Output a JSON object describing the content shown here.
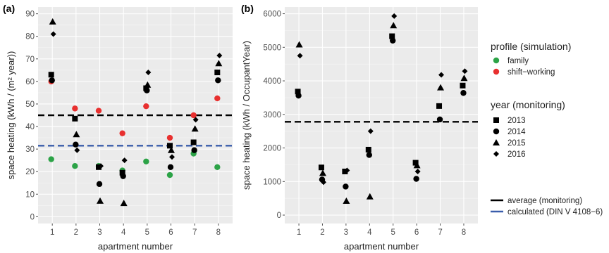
{
  "chart_data": [
    {
      "panel_label": "(a)",
      "type": "scatter",
      "xlabel": "apartment number",
      "ylabel": "space heating (kWh / (m² year))",
      "x_ticks": [
        "1",
        "2",
        "3",
        "4",
        "5",
        "6",
        "7",
        "8"
      ],
      "y_ticks": [
        "0",
        "10",
        "20",
        "30",
        "40",
        "50",
        "60",
        "70",
        "80",
        "90"
      ],
      "ylim": [
        -3,
        93
      ],
      "grid": true,
      "monitoring": [
        {
          "year": "2013",
          "values": [
            63,
            43.5,
            22,
            19.5,
            57,
            31.5,
            33,
            64
          ]
        },
        {
          "year": "2014",
          "values": [
            60.5,
            32,
            14.5,
            18,
            56,
            22,
            29.5,
            60.5
          ]
        },
        {
          "year": "2015",
          "values": [
            86.5,
            36.5,
            7,
            6,
            58.5,
            29.5,
            39,
            68
          ]
        },
        {
          "year": "2016",
          "values": [
            81,
            29.5,
            22.5,
            25,
            64,
            26.5,
            43,
            71.5
          ]
        }
      ],
      "simulation": [
        {
          "profile": "family",
          "values": [
            25.5,
            22.5,
            22.5,
            20.5,
            24.5,
            18.5,
            28,
            22
          ]
        },
        {
          "profile": "shift-working",
          "values": [
            60,
            48,
            47,
            37,
            49,
            35,
            45,
            52.5
          ]
        }
      ],
      "average_monitoring": 45,
      "calculated_din": 31.5
    },
    {
      "panel_label": "(b)",
      "type": "scatter",
      "xlabel": "apartment number",
      "ylabel": "space heating (kWh / OccupantYear)",
      "x_ticks": [
        "1",
        "2",
        "3",
        "4",
        "5",
        "6",
        "7",
        "8"
      ],
      "y_ticks": [
        "0",
        "1000",
        "2000",
        "3000",
        "4000",
        "5000",
        "6000"
      ],
      "ylim": [
        -250,
        6200
      ],
      "grid": true,
      "monitoring": [
        {
          "year": "2013",
          "values": [
            3680,
            1420,
            1300,
            1950,
            5330,
            1560,
            3250,
            3860
          ]
        },
        {
          "year": "2014",
          "values": [
            3560,
            1060,
            850,
            1790,
            5200,
            1080,
            2850,
            3640
          ]
        },
        {
          "year": "2015",
          "values": [
            5080,
            1250,
            420,
            550,
            5650,
            1480,
            3800,
            4080
          ]
        },
        {
          "year": "2016",
          "values": [
            4750,
            980,
            1330,
            2500,
            5930,
            1300,
            4180,
            4290
          ]
        }
      ],
      "average_monitoring": 2780
    }
  ],
  "legend": {
    "profile_title": "profile (simulation)",
    "profiles": [
      {
        "label": "family",
        "color": "#2ca347"
      },
      {
        "label": "shift−working",
        "color": "#e8302f"
      }
    ],
    "year_title": "year (monitoring)",
    "years": [
      {
        "label": "2013",
        "shape": "square"
      },
      {
        "label": "2014",
        "shape": "circle"
      },
      {
        "label": "2015",
        "shape": "triangle"
      },
      {
        "label": "2016",
        "shape": "diamond"
      }
    ],
    "lines": [
      {
        "label": "average (monitoring)",
        "color": "#000000"
      },
      {
        "label": "calculated (DIN V 4108−6)",
        "color": "#3a5dab"
      }
    ]
  },
  "colors": {
    "panel_bg": "#ebebeb",
    "grid_major": "#ffffff",
    "family": "#2ca347",
    "shift_working": "#e8302f",
    "average_line": "#000000",
    "din_line": "#3a5dab"
  }
}
